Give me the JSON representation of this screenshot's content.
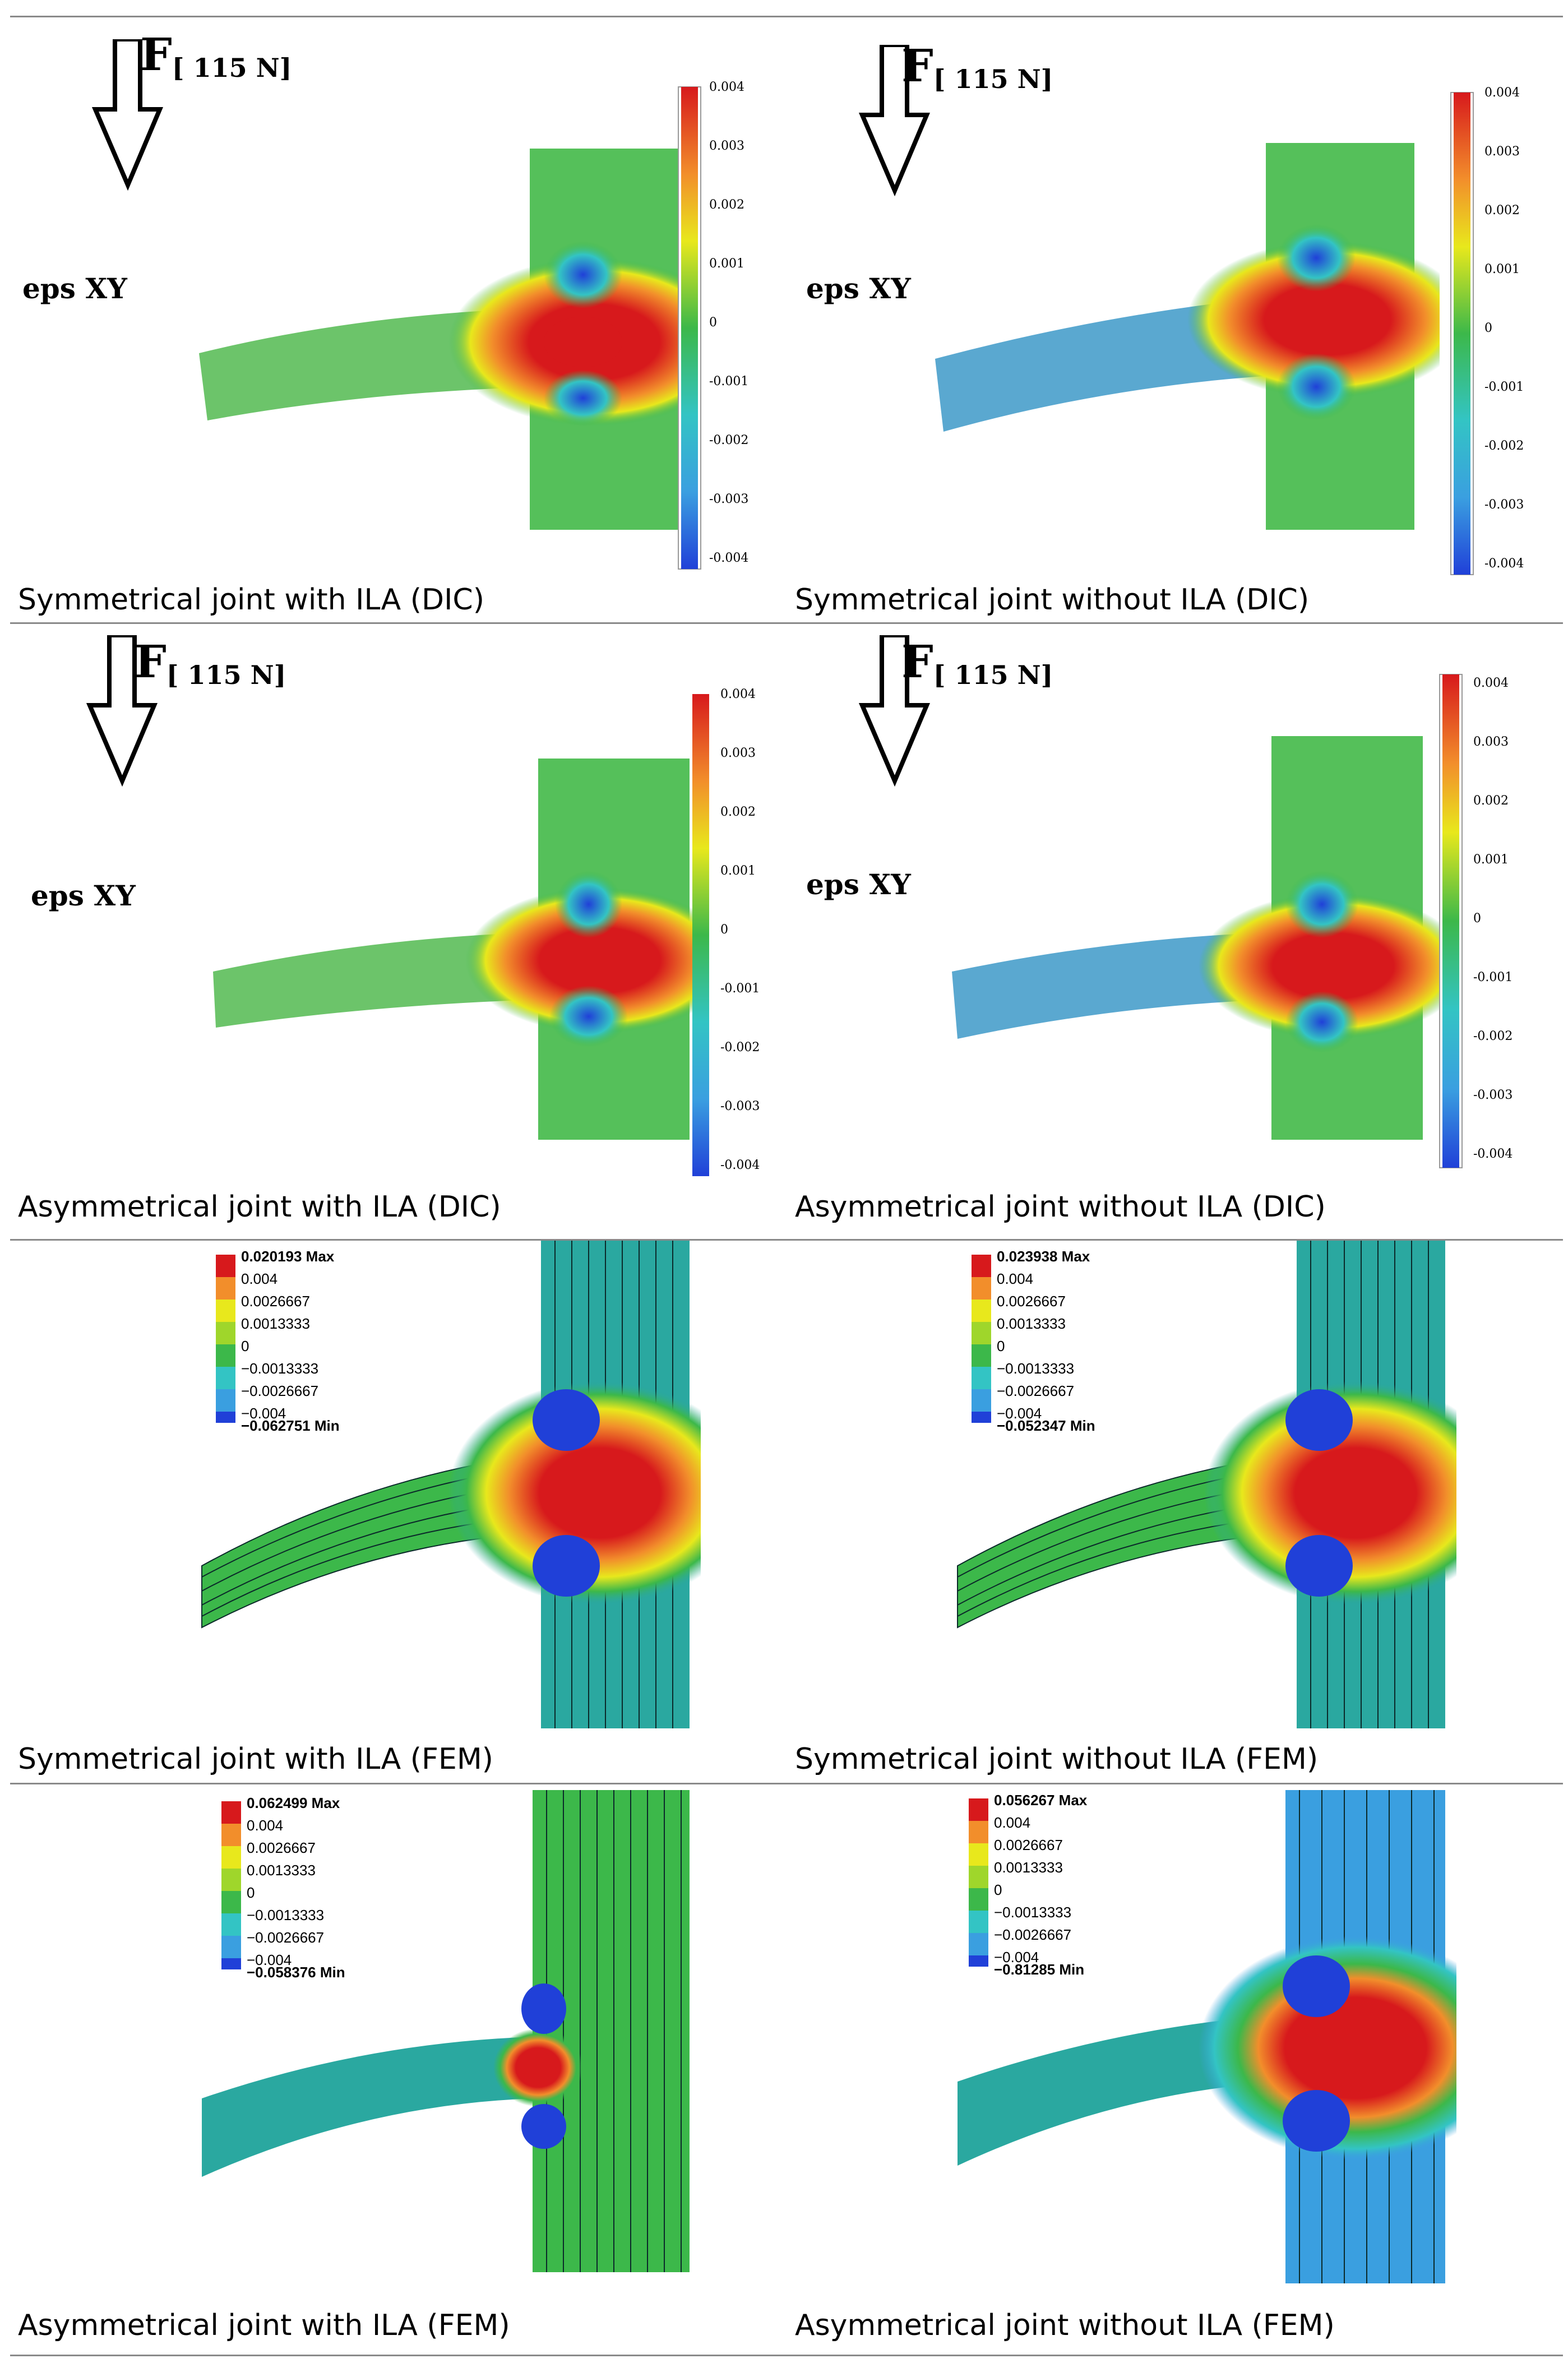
{
  "force_label": {
    "F": "F",
    "value": "[ 115 N]"
  },
  "eps_label": "eps XY",
  "dic_colorbar_ticks": [
    "0.004",
    "0.003",
    "0.002",
    "0.001",
    "0",
    "-0.001",
    "-0.002",
    "-0.003",
    "-0.004"
  ],
  "panels": [
    {
      "caption": "Symmetrical joint with ILA (DIC)"
    },
    {
      "caption": "Symmetrical joint without ILA (DIC)"
    },
    {
      "caption": "Asymmetrical joint with ILA (DIC)"
    },
    {
      "caption": "Asymmetrical joint without ILA (DIC)"
    },
    {
      "caption": "Symmetrical joint with ILA (FEM)",
      "legend": [
        "0.020193 Max",
        "0.004",
        "0.0026667",
        "0.0013333",
        "0",
        "−0.0013333",
        "−0.0026667",
        "−0.004",
        "−0.062751 Min"
      ]
    },
    {
      "caption": "Symmetrical joint without ILA (FEM)",
      "legend": [
        "0.023938 Max",
        "0.004",
        "0.0026667",
        "0.0013333",
        "0",
        "−0.0013333",
        "−0.0026667",
        "−0.004",
        "−0.052347 Min"
      ]
    },
    {
      "caption": "Asymmetrical joint with ILA (FEM)",
      "legend": [
        "0.062499 Max",
        "0.004",
        "0.0026667",
        "0.0013333",
        "0",
        "−0.0013333",
        "−0.0026667",
        "−0.004",
        "−0.058376 Min"
      ]
    },
    {
      "caption": "Asymmetrical joint without ILA (FEM)",
      "legend": [
        "0.056267 Max",
        "0.004",
        "0.0026667",
        "0.0013333",
        "0",
        "−0.0013333",
        "−0.0026667",
        "−0.004",
        "−0.81285 Min"
      ]
    }
  ],
  "colors": {
    "red": "#d7191c",
    "orange": "#f28e2b",
    "yellow": "#e8e81c",
    "yellowgreen": "#9fd62b",
    "green": "#3cb84a",
    "cyan": "#33c4c4",
    "lightblue": "#3a9fe0",
    "blue": "#2040d8",
    "navy": "#0a0a8a"
  }
}
